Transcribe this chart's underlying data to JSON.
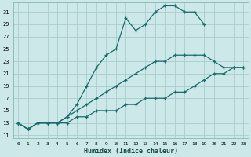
{
  "title": "",
  "xlabel": "Humidex (Indice chaleur)",
  "ylabel": "",
  "bg_color": "#cce8e8",
  "grid_color": "#aacccc",
  "line_color": "#1a6b6b",
  "xlim": [
    -0.5,
    23.5
  ],
  "ylim": [
    10.5,
    32.5
  ],
  "yticks": [
    11,
    13,
    15,
    17,
    19,
    21,
    23,
    25,
    27,
    29,
    31
  ],
  "xticks": [
    0,
    1,
    2,
    3,
    4,
    5,
    6,
    7,
    8,
    9,
    10,
    11,
    12,
    13,
    14,
    15,
    16,
    17,
    18,
    19,
    20,
    21,
    22,
    23
  ],
  "series": [
    {
      "x": [
        0,
        1,
        2,
        3,
        4,
        5,
        6,
        7,
        8,
        9,
        10,
        11,
        12,
        13,
        14,
        15,
        16,
        17,
        18,
        19
      ],
      "y": [
        13,
        12,
        13,
        13,
        13,
        14,
        16,
        19,
        22,
        24,
        25,
        30,
        28,
        29,
        31,
        32,
        32,
        31,
        31,
        29
      ]
    },
    {
      "x": [
        0,
        1,
        2,
        3,
        4,
        5,
        6,
        7,
        8,
        9,
        10,
        11,
        12,
        13,
        14,
        15,
        16,
        17,
        18,
        19,
        20,
        21,
        22,
        23
      ],
      "y": [
        13,
        12,
        13,
        13,
        13,
        14,
        15,
        16,
        17,
        18,
        19,
        20,
        21,
        22,
        23,
        23,
        24,
        24,
        24,
        24,
        23,
        22,
        22,
        22
      ]
    },
    {
      "x": [
        0,
        1,
        2,
        3,
        4,
        5,
        6,
        7,
        8,
        9,
        10,
        11,
        12,
        13,
        14,
        15,
        16,
        17,
        18,
        19,
        20,
        21,
        22,
        23
      ],
      "y": [
        13,
        12,
        13,
        13,
        13,
        13,
        14,
        14,
        15,
        15,
        15,
        16,
        16,
        17,
        17,
        17,
        18,
        18,
        19,
        20,
        21,
        21,
        22,
        22
      ]
    }
  ]
}
